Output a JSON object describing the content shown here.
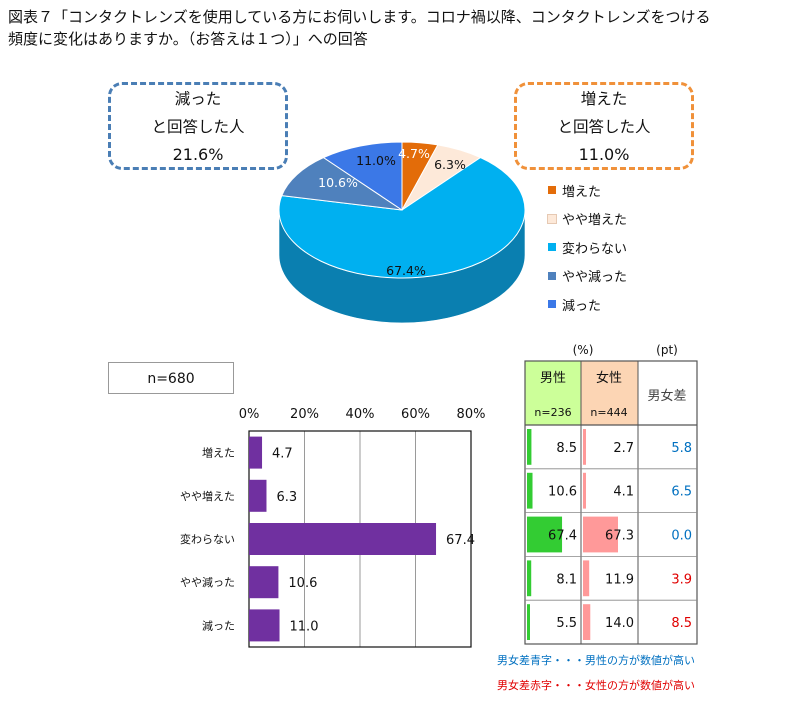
{
  "title_line1": "図表７「コンタクトレンズを使用している方にお伺いします。コロナ禍以降、コンタクトレンズをつける",
  "title_line2": "頻度に変化はありますか。（お答えは１つ）」への回答",
  "callout_left": {
    "line1": "減った",
    "line2": "と回答した人",
    "value": "21.6%"
  },
  "callout_right": {
    "line1": "増えた",
    "line2": "と回答した人",
    "value": "11.0%"
  },
  "sample_label": "n=680",
  "colors": {
    "increased": "#e36c09",
    "slightly_increased": "#fde9d9",
    "unchanged": "#00b0f0",
    "slightly_decreased": "#4f81bd",
    "decreased": "#3b78e7",
    "bar": "#7030a0",
    "male": "#33cc33",
    "female": "#ff9999",
    "diff_blue": "#0070c0",
    "diff_red": "#e00000"
  },
  "chart_data": [
    {
      "type": "pie",
      "categories": [
        "増えた",
        "やや増えた",
        "変わらない",
        "やや減った",
        "減った"
      ],
      "values": [
        4.7,
        6.3,
        67.4,
        10.6,
        11.0
      ],
      "labels": [
        "4.7%",
        "6.3%",
        "67.4%",
        "10.6%",
        "11.0%"
      ],
      "legend": [
        "増えた",
        "やや増えた",
        "変わらない",
        "やや減った",
        "減った"
      ],
      "legend_position": "right"
    },
    {
      "type": "bar",
      "orientation": "horizontal",
      "categories": [
        "増えた",
        "やや増えた",
        "変わらない",
        "やや減った",
        "減った"
      ],
      "values": [
        4.7,
        6.3,
        67.4,
        10.6,
        11.0
      ],
      "value_labels": [
        "4.7",
        "6.3",
        "67.4",
        "10.6",
        "11.0"
      ],
      "xlim": [
        0,
        80
      ],
      "ticks": [
        "0%",
        "20%",
        "40%",
        "60%",
        "80%"
      ],
      "grid": true
    },
    {
      "type": "table",
      "unit_left": "(%)",
      "unit_right": "(pt)",
      "columns": [
        {
          "name": "男性",
          "n": "n=236"
        },
        {
          "name": "女性",
          "n": "n=444"
        },
        {
          "name": "男女差"
        }
      ],
      "rows": [
        {
          "male": 8.5,
          "male_label": "8.5",
          "female": 2.7,
          "female_label": "2.7",
          "diff": "5.8",
          "diff_color": "blue"
        },
        {
          "male": 10.6,
          "male_label": "10.6",
          "female": 4.1,
          "female_label": "4.1",
          "diff": "6.5",
          "diff_color": "blue"
        },
        {
          "male": 67.4,
          "male_label": "67.4",
          "female": 67.3,
          "female_label": "67.3",
          "diff": "0.0",
          "diff_color": "blue"
        },
        {
          "male": 8.1,
          "male_label": "8.1",
          "female": 11.9,
          "female_label": "11.9",
          "diff": "3.9",
          "diff_color": "red"
        },
        {
          "male": 5.5,
          "male_label": "5.5",
          "female": 14.0,
          "female_label": "14.0",
          "diff": "8.5",
          "diff_color": "red"
        }
      ]
    }
  ],
  "note_blue": "男女差青字・・・男性の方が数値が高い",
  "note_red": "男女差赤字・・・女性の方が数値が高い"
}
